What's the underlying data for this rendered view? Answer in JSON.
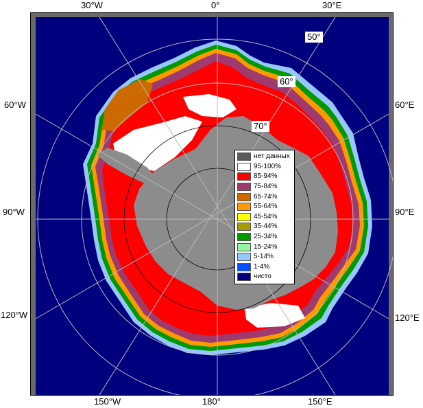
{
  "map": {
    "colors": {
      "ocean": "#00007f",
      "land": "#8c8c8c",
      "frame_gray": "#6a6a6a",
      "graticule": "#b8b8b8",
      "ice_high": "#ff0000",
      "ice_full": "#ffffff"
    },
    "longitude_labels": {
      "top": [
        "30°W",
        "0°",
        "30°E"
      ],
      "bottom": [
        "150°W",
        "180°",
        "150°E"
      ],
      "left": [
        "60°W",
        "90°W",
        "120°W"
      ],
      "right": [
        "60°E",
        "90°E",
        "120°E"
      ]
    },
    "latitude_labels": [
      "50°",
      "60°",
      "70°"
    ]
  },
  "legend": {
    "items": [
      {
        "label": "нет данных",
        "color": "#5a5a5a"
      },
      {
        "label": "95-100%",
        "color": "#ffffff"
      },
      {
        "label": "85-94%",
        "color": "#ff0000"
      },
      {
        "label": "75-84%",
        "color": "#9e3a6e"
      },
      {
        "label": "65-74%",
        "color": "#cc6a00"
      },
      {
        "label": "55-64%",
        "color": "#ff9900"
      },
      {
        "label": "45-54%",
        "color": "#ffff00"
      },
      {
        "label": "35-44%",
        "color": "#a59d00"
      },
      {
        "label": "25-34%",
        "color": "#009a00"
      },
      {
        "label": "15-24%",
        "color": "#96f5a0"
      },
      {
        "label": "5-14%",
        "color": "#96c8ff"
      },
      {
        "label": "1-4%",
        "color": "#0050ff"
      },
      {
        "label": "чисто",
        "color": "#00007f"
      }
    ]
  }
}
